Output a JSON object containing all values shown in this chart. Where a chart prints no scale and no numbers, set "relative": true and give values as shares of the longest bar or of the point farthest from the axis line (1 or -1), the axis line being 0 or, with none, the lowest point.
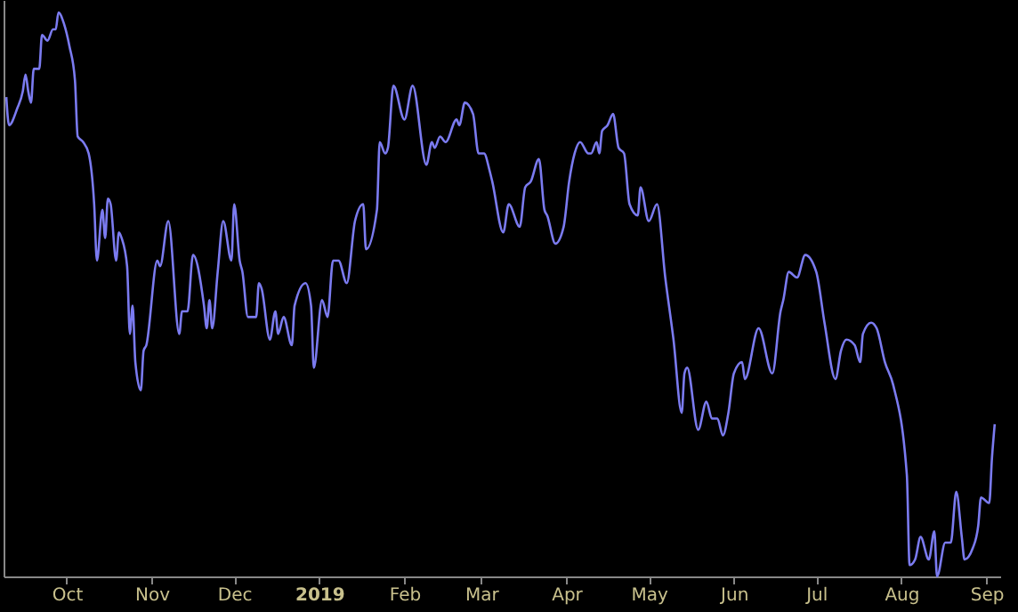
{
  "chart_data": {
    "type": "line",
    "relative": true,
    "xlim": [
      "2018-09-08",
      "2019-09-06"
    ],
    "xticks": [
      {
        "value": "2018-10-01",
        "label": "Oct"
      },
      {
        "value": "2018-11-01",
        "label": "Nov"
      },
      {
        "value": "2018-12-01",
        "label": "Dec"
      },
      {
        "value": "2019-01-01",
        "label": "2019"
      },
      {
        "value": "2019-02-01",
        "label": "Feb"
      },
      {
        "value": "2019-03-01",
        "label": "Mar"
      },
      {
        "value": "2019-04-01",
        "label": "Apr"
      },
      {
        "value": "2019-05-01",
        "label": "May"
      },
      {
        "value": "2019-06-01",
        "label": "Jun"
      },
      {
        "value": "2019-07-01",
        "label": "Jul"
      },
      {
        "value": "2019-08-01",
        "label": "Aug"
      },
      {
        "value": "2019-09-01",
        "label": "Sep"
      }
    ],
    "x": [
      "2018-09-09",
      "2018-09-10",
      "2018-09-13",
      "2018-09-15",
      "2018-09-16",
      "2018-09-17",
      "2018-09-18",
      "2018-09-19",
      "2018-09-21",
      "2018-09-22",
      "2018-09-24",
      "2018-09-26",
      "2018-09-27",
      "2018-09-28",
      "2018-09-30",
      "2018-10-02",
      "2018-10-04",
      "2018-10-05",
      "2018-10-07",
      "2018-10-09",
      "2018-10-11",
      "2018-10-12",
      "2018-10-14",
      "2018-10-15",
      "2018-10-16",
      "2018-10-17",
      "2018-10-19",
      "2018-10-20",
      "2018-10-21",
      "2018-10-23",
      "2018-10-24",
      "2018-10-25",
      "2018-10-26",
      "2018-10-28",
      "2018-10-29",
      "2018-10-30",
      "2018-11-03",
      "2018-11-04",
      "2018-11-07",
      "2018-11-11",
      "2018-11-12",
      "2018-11-14",
      "2018-11-16",
      "2018-11-20",
      "2018-11-21",
      "2018-11-22",
      "2018-11-23",
      "2018-11-25",
      "2018-11-27",
      "2018-11-30",
      "2018-12-01",
      "2018-12-03",
      "2018-12-04",
      "2018-12-06",
      "2018-12-09",
      "2018-12-10",
      "2018-12-11",
      "2018-12-14",
      "2018-12-16",
      "2018-12-17",
      "2018-12-19",
      "2018-12-22",
      "2018-12-23",
      "2018-12-27",
      "2018-12-29",
      "2018-12-30",
      "2019-01-02",
      "2019-01-04",
      "2019-01-06",
      "2019-01-08",
      "2019-01-11",
      "2019-01-14",
      "2019-01-17",
      "2019-01-18",
      "2019-01-22",
      "2019-01-23",
      "2019-01-25",
      "2019-01-26",
      "2019-01-28",
      "2019-02-01",
      "2019-02-04",
      "2019-02-09",
      "2019-02-11",
      "2019-02-12",
      "2019-02-14",
      "2019-02-16",
      "2019-02-20",
      "2019-02-21",
      "2019-02-23",
      "2019-02-26",
      "2019-02-28",
      "2019-03-02",
      "2019-03-04",
      "2019-03-05",
      "2019-03-09",
      "2019-03-11",
      "2019-03-15",
      "2019-03-17",
      "2019-03-19",
      "2019-03-22",
      "2019-03-24",
      "2019-03-25",
      "2019-03-28",
      "2019-03-31",
      "2019-04-02",
      "2019-04-04",
      "2019-04-06",
      "2019-04-09",
      "2019-04-10",
      "2019-04-12",
      "2019-04-13",
      "2019-04-14",
      "2019-04-16",
      "2019-04-18",
      "2019-04-20",
      "2019-04-22",
      "2019-04-24",
      "2019-04-27",
      "2019-04-28",
      "2019-05-01",
      "2019-05-04",
      "2019-05-07",
      "2019-05-10",
      "2019-05-13",
      "2019-05-14",
      "2019-05-15",
      "2019-05-19",
      "2019-05-22",
      "2019-05-24",
      "2019-05-26",
      "2019-05-28",
      "2019-05-30",
      "2019-06-01",
      "2019-06-04",
      "2019-06-05",
      "2019-06-10",
      "2019-06-15",
      "2019-06-18",
      "2019-06-19",
      "2019-06-21",
      "2019-06-24",
      "2019-06-27",
      "2019-07-01",
      "2019-07-04",
      "2019-07-08",
      "2019-07-10",
      "2019-07-12",
      "2019-07-15",
      "2019-07-17",
      "2019-07-18",
      "2019-07-21",
      "2019-07-23",
      "2019-07-26",
      "2019-07-29",
      "2019-08-03",
      "2019-08-04",
      "2019-08-06",
      "2019-08-08",
      "2019-08-11",
      "2019-08-13",
      "2019-08-14",
      "2019-08-17",
      "2019-08-19",
      "2019-08-21",
      "2019-08-23",
      "2019-08-24",
      "2019-08-27",
      "2019-08-29",
      "2019-08-30",
      "2019-09-02",
      "2019-09-03",
      "2019-09-04"
    ],
    "series": [
      {
        "color": "#7b7bf0",
        "values": [
          0.85,
          0.8,
          0.83,
          0.86,
          0.89,
          0.86,
          0.84,
          0.9,
          0.9,
          0.96,
          0.95,
          0.97,
          0.97,
          1.0,
          0.98,
          0.94,
          0.88,
          0.78,
          0.77,
          0.75,
          0.66,
          0.56,
          0.65,
          0.6,
          0.67,
          0.66,
          0.56,
          0.61,
          0.6,
          0.55,
          0.43,
          0.48,
          0.38,
          0.33,
          0.4,
          0.41,
          0.56,
          0.55,
          0.63,
          0.43,
          0.47,
          0.47,
          0.57,
          0.48,
          0.44,
          0.49,
          0.44,
          0.54,
          0.63,
          0.56,
          0.66,
          0.56,
          0.54,
          0.46,
          0.46,
          0.52,
          0.51,
          0.42,
          0.47,
          0.43,
          0.46,
          0.41,
          0.48,
          0.52,
          0.48,
          0.37,
          0.49,
          0.46,
          0.56,
          0.56,
          0.52,
          0.63,
          0.66,
          0.58,
          0.65,
          0.77,
          0.75,
          0.76,
          0.87,
          0.81,
          0.87,
          0.73,
          0.77,
          0.76,
          0.78,
          0.77,
          0.81,
          0.8,
          0.84,
          0.82,
          0.75,
          0.75,
          0.72,
          0.7,
          0.61,
          0.66,
          0.62,
          0.69,
          0.7,
          0.74,
          0.65,
          0.64,
          0.59,
          0.62,
          0.7,
          0.75,
          0.77,
          0.75,
          0.75,
          0.77,
          0.75,
          0.79,
          0.8,
          0.82,
          0.76,
          0.75,
          0.66,
          0.64,
          0.69,
          0.63,
          0.66,
          0.53,
          0.42,
          0.29,
          0.36,
          0.37,
          0.26,
          0.31,
          0.28,
          0.28,
          0.25,
          0.29,
          0.36,
          0.38,
          0.35,
          0.44,
          0.36,
          0.47,
          0.49,
          0.54,
          0.53,
          0.57,
          0.54,
          0.45,
          0.35,
          0.4,
          0.42,
          0.41,
          0.38,
          0.43,
          0.45,
          0.44,
          0.38,
          0.34,
          0.18,
          0.02,
          0.03,
          0.07,
          0.03,
          0.08,
          0.0,
          0.06,
          0.06,
          0.15,
          0.07,
          0.03,
          0.05,
          0.09,
          0.14,
          0.13,
          0.21,
          0.27
        ]
      }
    ],
    "grid": false
  }
}
